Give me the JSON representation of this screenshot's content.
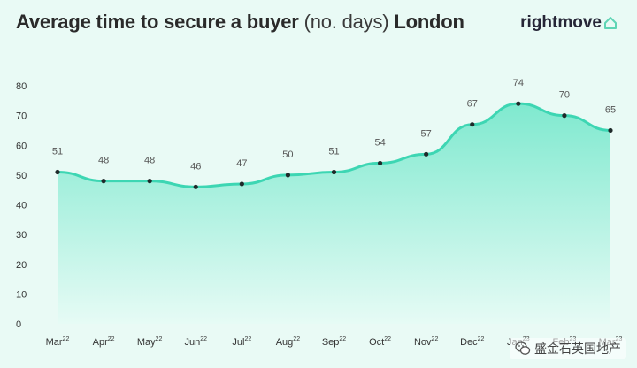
{
  "header": {
    "title_bold_1": "Average time to secure a buyer",
    "title_light": "(no. days)",
    "title_bold_2": "London",
    "brand": "rightmove"
  },
  "watermark": {
    "text": "盛金石英国地产",
    "icon": "wechat-icon"
  },
  "colors": {
    "line": "#3dd6b3",
    "fill_top": "#7fe9cf",
    "fill_bottom": "#e6fbf5",
    "marker": "#1f2a2a",
    "brand": "#5fd5b5"
  },
  "chart_data": {
    "type": "area",
    "title": "Average time to secure a buyer (no. days) London",
    "categories": [
      {
        "label": "Mar",
        "year": "22"
      },
      {
        "label": "Apr",
        "year": "22"
      },
      {
        "label": "May",
        "year": "22"
      },
      {
        "label": "Jun",
        "year": "22"
      },
      {
        "label": "Jul",
        "year": "22"
      },
      {
        "label": "Aug",
        "year": "22"
      },
      {
        "label": "Sep",
        "year": "22"
      },
      {
        "label": "Oct",
        "year": "22"
      },
      {
        "label": "Nov",
        "year": "22"
      },
      {
        "label": "Dec",
        "year": "22"
      },
      {
        "label": "Jan",
        "year": "23"
      },
      {
        "label": "Feb",
        "year": "23"
      },
      {
        "label": "Mar",
        "year": "23"
      }
    ],
    "series": [
      {
        "values": [
          51,
          48,
          48,
          46,
          47,
          50,
          51,
          54,
          57,
          67,
          74,
          70,
          65
        ]
      }
    ],
    "yticks": [
      0,
      10,
      20,
      30,
      40,
      50,
      60,
      70,
      80
    ],
    "ylim": [
      0,
      80
    ],
    "grid": false,
    "legend": false
  }
}
